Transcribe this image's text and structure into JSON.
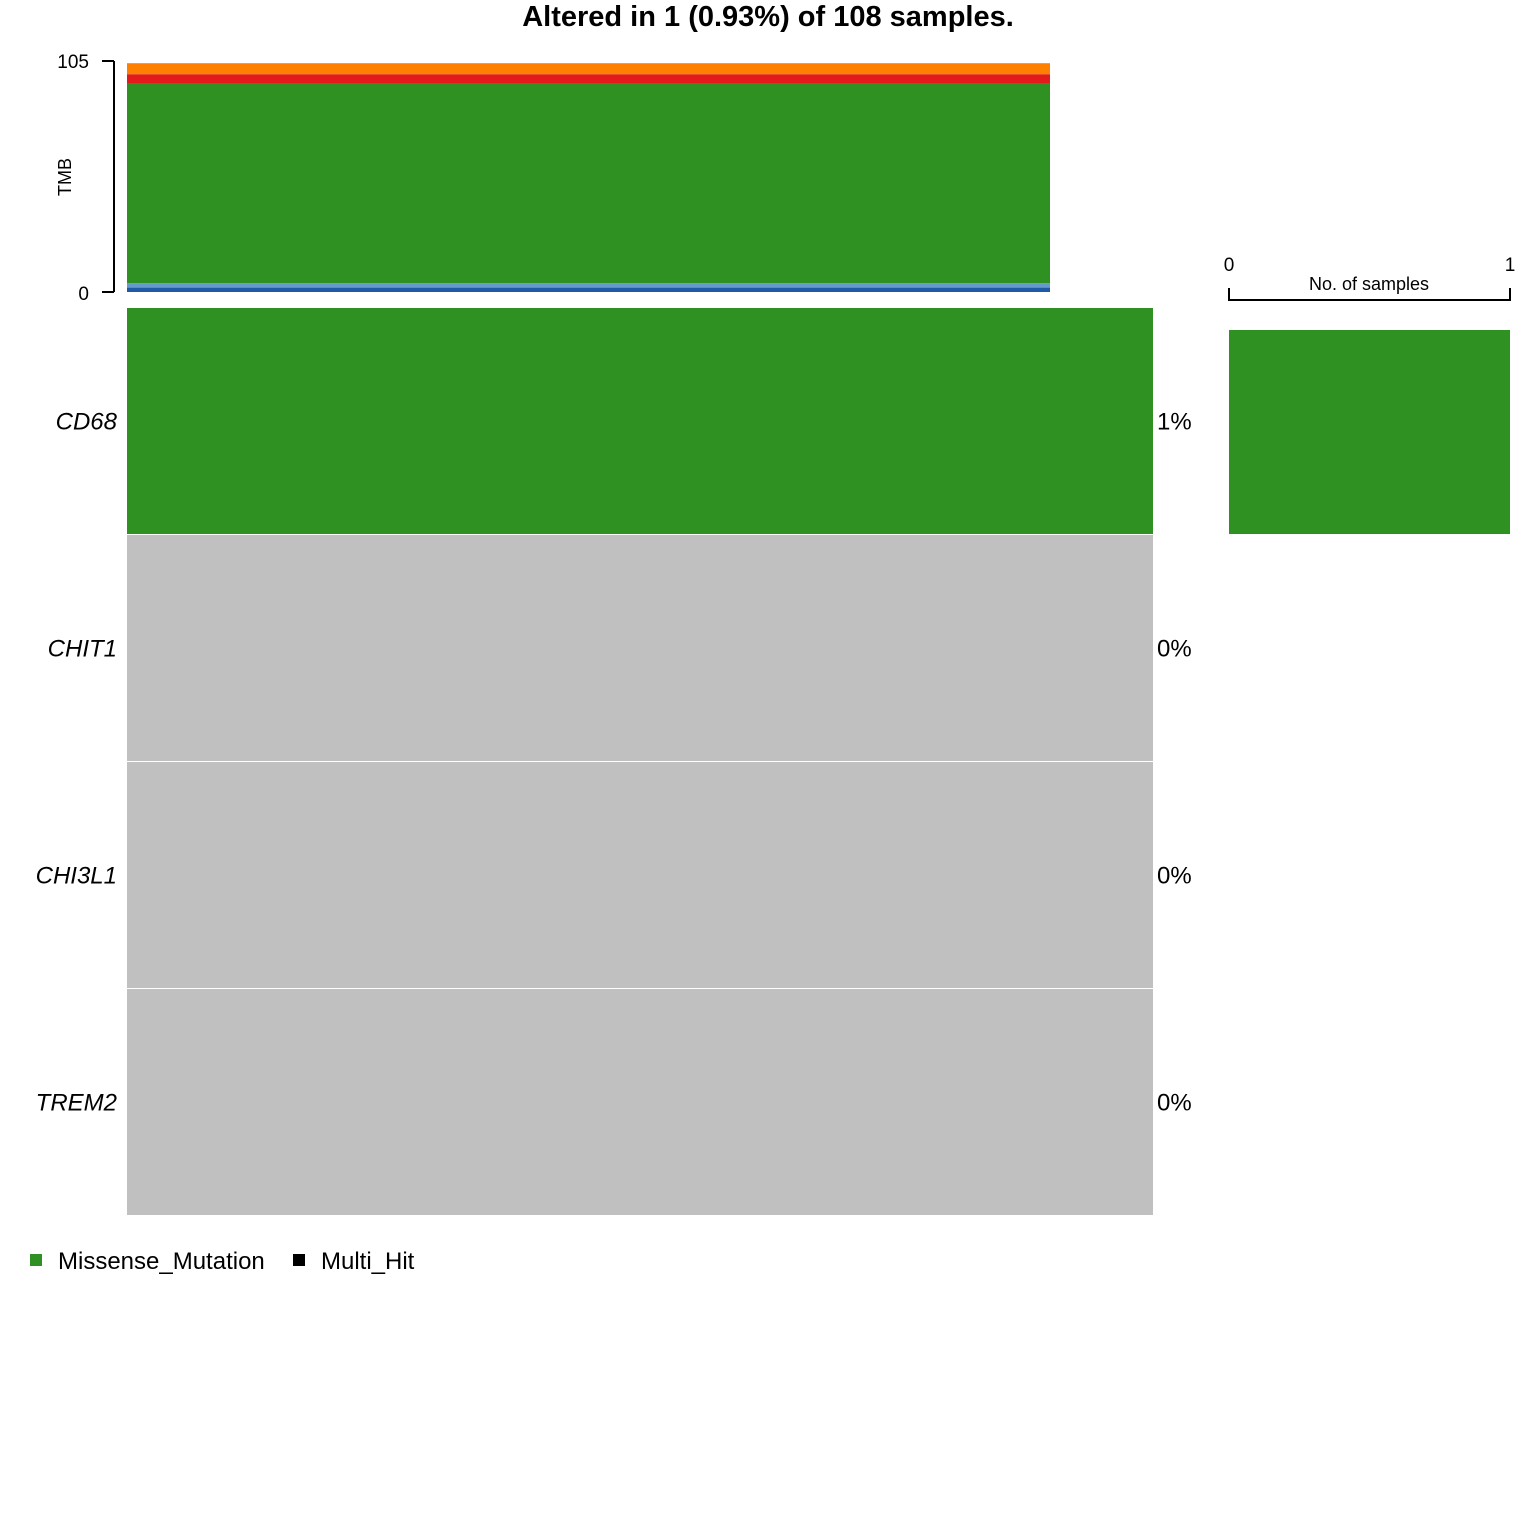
{
  "chart_data": {
    "type": "heatmap",
    "title": "Altered in 1 (0.93%) of 108 samples.",
    "oncoplot": {
      "genes": [
        "CD68",
        "CHIT1",
        "CHI3L1",
        "TREM2"
      ],
      "percent_labels": [
        "1%",
        "0%",
        "0%",
        "0%"
      ],
      "altered_gene": "CD68",
      "altered_variant": "Missense_Mutation",
      "altered_samples": 1,
      "total_samples": 108,
      "no_alteration_color": "#c0c0c0"
    },
    "tmb_bar": {
      "ylabel": "TMB",
      "ylim": [
        0,
        105
      ],
      "yticks": [
        "0",
        "105"
      ],
      "segments": [
        {
          "color": "#1f5aa6",
          "value": 2
        },
        {
          "color": "#6699cc",
          "value": 2
        },
        {
          "color": "#2e9121",
          "value": 91
        },
        {
          "color": "#e31a1c",
          "value": 4
        },
        {
          "color": "#ff7f00",
          "value": 5
        }
      ]
    },
    "gene_bar": {
      "xlabel": "No. of samples",
      "xlim": [
        0,
        1
      ],
      "xticks": [
        "0",
        "1"
      ],
      "values": [
        1,
        0,
        0,
        0
      ]
    },
    "legend": {
      "position": "bottom-left",
      "items": [
        {
          "label": "Missense_Mutation",
          "color": "#2e9121"
        },
        {
          "label": "Multi_Hit",
          "color": "#000000"
        }
      ]
    },
    "colors": {
      "missense": "#2e9121",
      "no_alteration": "#c0c0c0",
      "axis": "#000000"
    }
  }
}
